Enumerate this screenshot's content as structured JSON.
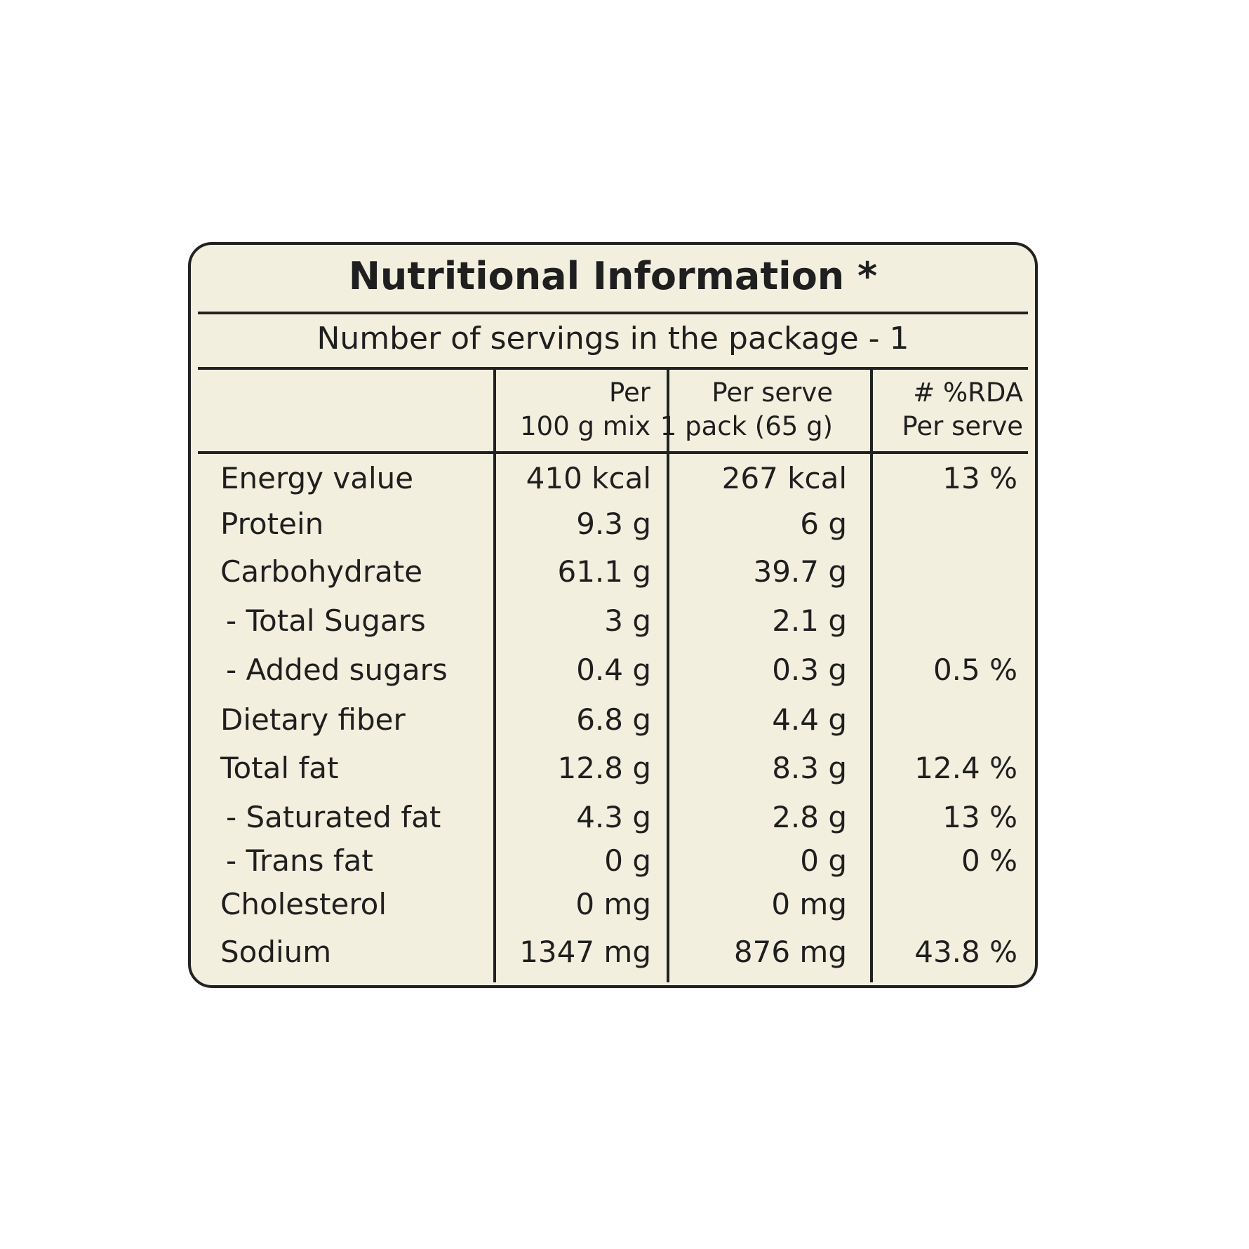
{
  "title": "Nutritional Information *",
  "servings": "Number of servings in the package - 1",
  "table": {
    "header": [
      {
        "line1": "Per",
        "line2": "100 g mix"
      },
      {
        "line1": "Per serve",
        "line2": "1 pack (65 g)"
      },
      {
        "line1": "# %RDA",
        "line2": "Per serve"
      }
    ],
    "rows": [
      [
        "Energy value",
        "410 kcal",
        "267 kcal",
        "13 %"
      ],
      [
        "Protein",
        "9.3 g",
        "6 g"
      ],
      [
        "Carbohydrate",
        "61.1 g",
        "39.7 g"
      ],
      [
        "- Total Sugars",
        "3 g",
        "2.1 g"
      ],
      [
        "- Added sugars",
        "0.4 g",
        "0.3 g",
        "0.5 %"
      ],
      [
        "Dietary fiber",
        "6.8 g",
        "4.4 g"
      ],
      [
        "Total fat",
        "12.8 g",
        "8.3 g",
        "12.4 %"
      ],
      [
        "- Saturated fat",
        "4.3 g",
        "2.8 g",
        "13 %"
      ],
      [
        "- Trans fat",
        "0 g",
        "0 g",
        "0 %"
      ],
      [
        "Cholesterol",
        "0 mg",
        "0 mg"
      ],
      [
        "Sodium",
        "1347 mg",
        "876 mg",
        "43.8 %"
      ]
    ]
  }
}
